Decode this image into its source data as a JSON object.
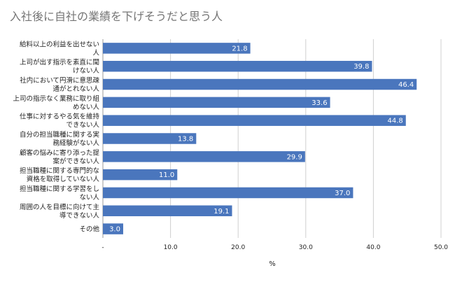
{
  "chart_data": {
    "type": "bar",
    "orientation": "horizontal",
    "title": "入社後に自社の業績を下げそうだと思う人",
    "xlabel": "%",
    "ylabel": "",
    "xlim": [
      0,
      50
    ],
    "xticks": [
      "-",
      "10.0",
      "20.0",
      "30.0",
      "40.0",
      "50.0"
    ],
    "grid": true,
    "legend": "none",
    "bar_color": "#4a76bd",
    "categories": [
      [
        "給料以上の利益を出せない",
        "人"
      ],
      [
        "上司が出す指示を素直に聞",
        "けない人"
      ],
      [
        "社内において円滑に意思疎",
        "通がとれない人"
      ],
      [
        "上司の指示なく業務に取り組",
        "めない人"
      ],
      [
        "仕事に対するやる気を維持",
        "できない人"
      ],
      [
        "自分の担当職種に関する実",
        "務経験がない人"
      ],
      [
        "顧客の悩みに寄り添った提",
        "案ができない人"
      ],
      [
        "担当職種に関する専門的な",
        "資格を取得していない人"
      ],
      [
        "担当職種に関する学習をし",
        "ない人"
      ],
      [
        "周囲の人を目標に向けて主",
        "導できない人"
      ],
      [
        "その他"
      ]
    ],
    "values": [
      21.8,
      39.8,
      46.4,
      33.6,
      44.8,
      13.8,
      29.9,
      11.0,
      37.0,
      19.1,
      3.0
    ],
    "value_labels": [
      "21.8",
      "39.8",
      "46.4",
      "33.6",
      "44.8",
      "13.8",
      "29.9",
      "11.0",
      "37.0",
      "19.1",
      "3.0"
    ]
  }
}
